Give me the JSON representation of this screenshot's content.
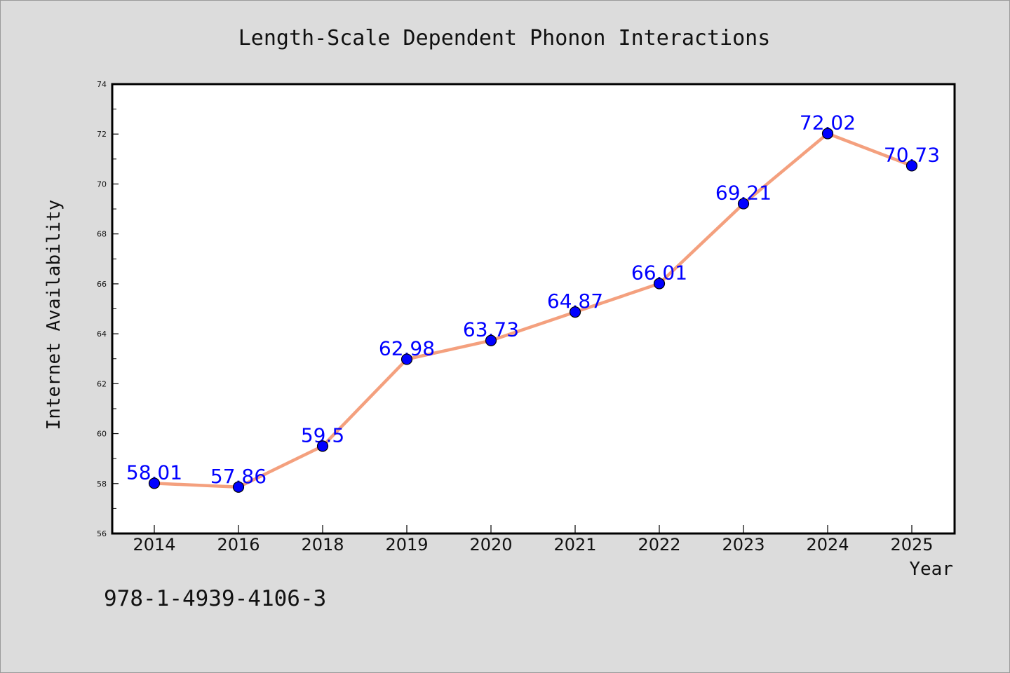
{
  "chart_data": {
    "type": "line",
    "title": "Length-Scale Dependent Phonon Interactions",
    "xlabel": "Year",
    "ylabel": "Internet Availability",
    "categories": [
      "2014",
      "2016",
      "2018",
      "2019",
      "2020",
      "2021",
      "2022",
      "2023",
      "2024",
      "2025"
    ],
    "values": [
      58.01,
      57.86,
      59.5,
      62.98,
      63.73,
      64.87,
      66.01,
      69.21,
      72.02,
      70.73
    ],
    "value_labels": [
      "58.01",
      "57.86",
      "59.5",
      "62.98",
      "63.73",
      "64.87",
      "66.01",
      "69.21",
      "72.02",
      "70.73"
    ],
    "ylim": [
      56,
      74
    ],
    "yticks": [
      "56",
      "58",
      "60",
      "62",
      "64",
      "66",
      "68",
      "70",
      "72",
      "74"
    ],
    "grid": false,
    "line_color": "#f4a07e",
    "marker_color": "#0000ff",
    "label_color": "#0000ff"
  },
  "isbn": "978-1-4939-4106-3"
}
